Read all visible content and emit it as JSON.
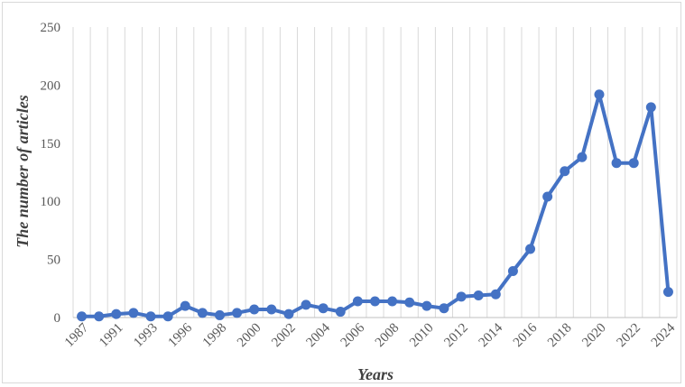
{
  "chart_data": {
    "type": "line",
    "title": "",
    "xlabel": "Years",
    "ylabel": "The number of articles",
    "ylim": [
      0,
      250
    ],
    "yticks": [
      "0",
      "50",
      "100",
      "150",
      "200",
      "250"
    ],
    "x_tick_labels": [
      "1987",
      "1991",
      "1993",
      "1996",
      "1998",
      "2000",
      "2002",
      "2004",
      "2006",
      "2008",
      "2010",
      "2012",
      "2014",
      "2016",
      "2018",
      "2020",
      "2022",
      "2024"
    ],
    "x_tick_positions": [
      0,
      2,
      4,
      6,
      8,
      10,
      12,
      14,
      16,
      18,
      20,
      22,
      24,
      26,
      28,
      30,
      32,
      34
    ],
    "grid": "vertical",
    "legend": "none",
    "series": [
      {
        "color": "#4472c4",
        "values": [
          1,
          1,
          3,
          4,
          1,
          1,
          10,
          4,
          2,
          4,
          7,
          7,
          3,
          11,
          8,
          5,
          14,
          14,
          14,
          13,
          10,
          8,
          18,
          19,
          20,
          40,
          59,
          104,
          126,
          138,
          192,
          133,
          133,
          181,
          22
        ]
      }
    ]
  }
}
